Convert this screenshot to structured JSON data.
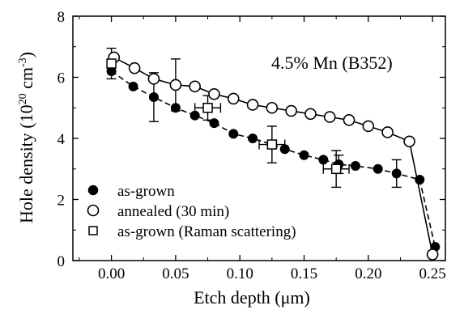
{
  "chart_data": {
    "type": "scatter",
    "annotation": "4.5% Mn (B352)",
    "xlabel": "Etch depth (μm)",
    "ylabel_main": "Hole density (10",
    "ylabel_sup1": "20",
    "ylabel_mid": " cm",
    "ylabel_sup2": "-3",
    "ylabel_end": ")",
    "xlim": [
      -0.03,
      0.26
    ],
    "ylim": [
      0,
      8
    ],
    "x_ticks": [
      0.0,
      0.05,
      0.1,
      0.15,
      0.2,
      0.25
    ],
    "x_tick_labels": [
      "0.00",
      "0.05",
      "0.10",
      "0.15",
      "0.20",
      "0.25"
    ],
    "y_ticks": [
      0,
      2,
      4,
      6,
      8
    ],
    "y_tick_labels": [
      "0",
      "2",
      "4",
      "6",
      "8"
    ],
    "grid": false,
    "legend_position": "bottom-left",
    "series": [
      {
        "name": "as-grown",
        "marker": "filled-circle",
        "line": "dashed",
        "x": [
          0.0,
          0.017,
          0.033,
          0.05,
          0.065,
          0.08,
          0.095,
          0.11,
          0.125,
          0.135,
          0.15,
          0.165,
          0.177,
          0.19,
          0.2075,
          0.222,
          0.24,
          0.252
        ],
        "y": [
          6.2,
          5.7,
          5.35,
          5.0,
          4.75,
          4.5,
          4.15,
          4.0,
          3.8,
          3.65,
          3.45,
          3.3,
          3.15,
          3.1,
          3.0,
          2.85,
          2.65,
          0.45
        ],
        "error_bars": [
          {
            "x": 0.033,
            "y": 5.35,
            "y_err": 0.8
          },
          {
            "x": 0.177,
            "y": 3.15,
            "y_err": 0.3
          },
          {
            "x": 0.222,
            "y": 2.85,
            "y_err": 0.45
          }
        ]
      },
      {
        "name": "annealed (30 min)",
        "marker": "open-circle",
        "line": "solid",
        "x": [
          0.002,
          0.018,
          0.033,
          0.05,
          0.065,
          0.08,
          0.095,
          0.11,
          0.125,
          0.14,
          0.155,
          0.17,
          0.185,
          0.2,
          0.215,
          0.232,
          0.25
        ],
        "y": [
          6.65,
          6.3,
          5.95,
          5.75,
          5.7,
          5.45,
          5.3,
          5.1,
          5.0,
          4.9,
          4.8,
          4.7,
          4.6,
          4.4,
          4.2,
          3.9,
          0.2
        ],
        "error_bars": [
          {
            "x": 0.05,
            "y": 5.75,
            "y_err": 0.85
          }
        ]
      },
      {
        "name": "as-grown (Raman scattering)",
        "marker": "open-square",
        "line": "none",
        "x": [
          0.0,
          0.075,
          0.125,
          0.175
        ],
        "y": [
          6.45,
          5.0,
          3.8,
          3.0
        ],
        "error_bars": [
          {
            "x": 0.0,
            "y": 6.45,
            "y_err": 0.5
          },
          {
            "x": 0.075,
            "y": 5.0,
            "x_err": 0.01,
            "y_err": 0.4
          },
          {
            "x": 0.125,
            "y": 3.8,
            "x_err": 0.01,
            "y_err": 0.6
          },
          {
            "x": 0.175,
            "y": 3.0,
            "x_err": 0.01,
            "y_err": 0.6
          }
        ]
      }
    ]
  }
}
